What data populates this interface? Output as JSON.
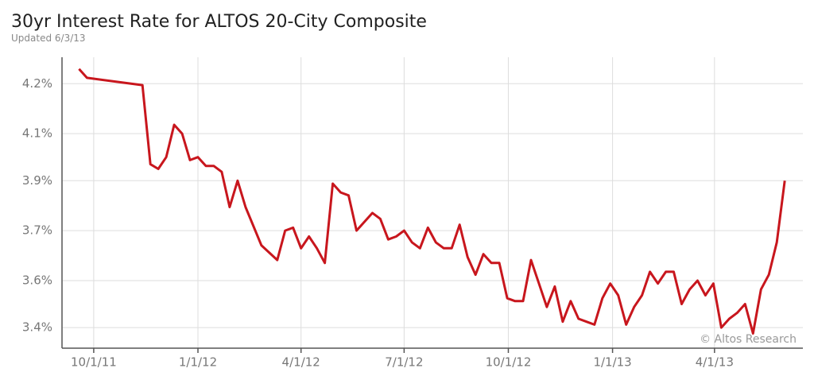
{
  "chart_data": {
    "type": "line",
    "title": "30yr Interest Rate for ALTOS 20-City Composite",
    "subtitle": "Updated 6/3/13",
    "annotation": "© Altos Research",
    "color": "#c8161d",
    "grid": true,
    "xlim": [
      "2011-09-03",
      "2013-06-18"
    ],
    "xticks": [
      {
        "value": "2011-10-01",
        "label": "10/1/11"
      },
      {
        "value": "2012-01-01",
        "label": "1/1/12"
      },
      {
        "value": "2012-04-01",
        "label": "4/1/12"
      },
      {
        "value": "2012-07-01",
        "label": "7/1/12"
      },
      {
        "value": "2012-10-01",
        "label": "10/1/12"
      },
      {
        "value": "2013-01-01",
        "label": "1/1/13"
      },
      {
        "value": "2013-04-01",
        "label": "4/1/13"
      }
    ],
    "ylim": [
      3.35,
      4.34
    ],
    "yticks": [
      {
        "value": 3.42,
        "label": "3.4%"
      },
      {
        "value": 3.58,
        "label": "3.6%"
      },
      {
        "value": 3.75,
        "label": "3.7%"
      },
      {
        "value": 3.92,
        "label": "3.9%"
      },
      {
        "value": 4.08,
        "label": "4.1%"
      },
      {
        "value": 4.25,
        "label": "4.2%"
      }
    ],
    "x": [
      "2011-09-18",
      "2011-09-25",
      "2011-11-13",
      "2011-11-20",
      "2011-11-27",
      "2011-12-04",
      "2011-12-11",
      "2011-12-18",
      "2011-12-25",
      "2012-01-01",
      "2012-01-08",
      "2012-01-15",
      "2012-01-22",
      "2012-01-29",
      "2012-02-05",
      "2012-02-12",
      "2012-02-26",
      "2012-03-11",
      "2012-03-18",
      "2012-03-25",
      "2012-04-01",
      "2012-04-08",
      "2012-04-15",
      "2012-04-22",
      "2012-04-29",
      "2012-05-06",
      "2012-05-13",
      "2012-05-20",
      "2012-05-27",
      "2012-06-03",
      "2012-06-10",
      "2012-06-17",
      "2012-06-24",
      "2012-07-01",
      "2012-07-08",
      "2012-07-15",
      "2012-07-22",
      "2012-07-29",
      "2012-08-05",
      "2012-08-12",
      "2012-08-19",
      "2012-08-26",
      "2012-09-02",
      "2012-09-09",
      "2012-09-16",
      "2012-09-23",
      "2012-09-30",
      "2012-10-07",
      "2012-10-14",
      "2012-10-21",
      "2012-10-28",
      "2012-11-04",
      "2012-11-11",
      "2012-11-18",
      "2012-11-25",
      "2012-12-02",
      "2012-12-09",
      "2012-12-16",
      "2012-12-23",
      "2012-12-30",
      "2013-01-06",
      "2013-01-13",
      "2013-01-20",
      "2013-01-27",
      "2013-02-03",
      "2013-02-10",
      "2013-02-17",
      "2013-02-24",
      "2013-03-03",
      "2013-03-10",
      "2013-03-17",
      "2013-03-24",
      "2013-03-31",
      "2013-04-07",
      "2013-04-14",
      "2013-04-21",
      "2013-04-28",
      "2013-05-05",
      "2013-05-12",
      "2013-05-19",
      "2013-05-26",
      "2013-06-02"
    ],
    "values": [
      4.3,
      4.27,
      4.245,
      3.976,
      3.96,
      4.0,
      4.11,
      4.08,
      3.99,
      4.0,
      3.97,
      3.97,
      3.95,
      3.83,
      3.92,
      3.83,
      3.7,
      3.65,
      3.75,
      3.76,
      3.69,
      3.73,
      3.69,
      3.64,
      3.91,
      3.88,
      3.87,
      3.75,
      3.78,
      3.81,
      3.79,
      3.72,
      3.73,
      3.75,
      3.71,
      3.69,
      3.76,
      3.71,
      3.69,
      3.69,
      3.77,
      3.66,
      3.6,
      3.67,
      3.64,
      3.64,
      3.52,
      3.51,
      3.51,
      3.65,
      3.57,
      3.49,
      3.56,
      3.44,
      3.51,
      3.45,
      3.44,
      3.43,
      3.52,
      3.57,
      3.53,
      3.43,
      3.49,
      3.53,
      3.61,
      3.57,
      3.61,
      3.61,
      3.5,
      3.55,
      3.58,
      3.53,
      3.57,
      3.42,
      3.45,
      3.47,
      3.5,
      3.4,
      3.55,
      3.6,
      3.71,
      3.92
    ]
  }
}
